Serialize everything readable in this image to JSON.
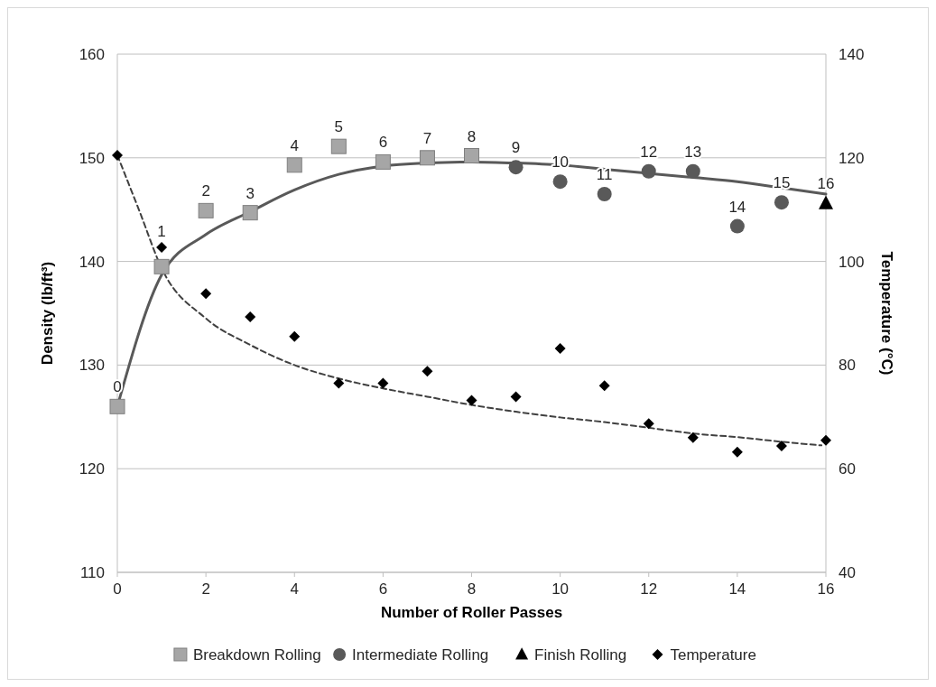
{
  "chart_data": {
    "type": "scatter",
    "xlabel": "Number of Roller Passes",
    "ylabel": "Density (lb/ft³)",
    "y2label": "Temperature (°C)",
    "xlim": [
      0,
      16
    ],
    "xticks": [
      0,
      2,
      4,
      6,
      8,
      10,
      12,
      14,
      16
    ],
    "ylim": [
      110,
      160
    ],
    "yticks": [
      110,
      120,
      130,
      140,
      150,
      160
    ],
    "y2lim": [
      40,
      140
    ],
    "y2ticks": [
      40,
      60,
      80,
      100,
      120,
      140
    ],
    "grid": "y",
    "legend": "bottom",
    "series": [
      {
        "name": "Breakdown Rolling",
        "marker": "square",
        "color": "#a6a6a6",
        "x": [
          0,
          1,
          2,
          3,
          4,
          5,
          6,
          7,
          8
        ],
        "values": [
          126.0,
          139.5,
          144.9,
          144.7,
          149.3,
          151.1,
          149.6,
          150.0,
          150.2
        ]
      },
      {
        "name": "Intermediate Rolling",
        "marker": "circle",
        "color": "#595959",
        "x": [
          9,
          10,
          11,
          12,
          13,
          14,
          15
        ],
        "values": [
          149.1,
          147.7,
          146.5,
          148.7,
          148.7,
          143.4,
          145.7
        ]
      },
      {
        "name": "Finish Rolling",
        "marker": "triangle",
        "color": "#000000",
        "x": [
          16
        ],
        "values": [
          145.6
        ]
      },
      {
        "name": "Temperature",
        "marker": "diamond",
        "color": "#000000",
        "axis": "y2",
        "x": [
          0,
          1,
          2,
          3,
          4,
          5,
          6,
          7,
          8,
          9,
          10,
          11,
          12,
          13,
          14,
          15,
          16
        ],
        "values": [
          120.5,
          102.7,
          93.8,
          89.3,
          85.5,
          76.5,
          76.5,
          78.8,
          73.2,
          73.9,
          83.2,
          76.0,
          68.7,
          66.0,
          63.2,
          64.4,
          65.5
        ]
      },
      {
        "type": "line",
        "marker": "none",
        "line_style": "solid",
        "color": "#595959",
        "x": [
          0,
          1,
          2,
          3,
          4,
          5,
          6,
          7,
          8,
          9,
          10,
          11,
          12,
          13,
          14,
          15,
          16
        ],
        "values": [
          126.0,
          138.7,
          142.6,
          144.8,
          146.9,
          148.4,
          149.2,
          149.5,
          149.6,
          149.5,
          149.3,
          148.9,
          148.5,
          148.1,
          147.7,
          147.1,
          146.5
        ]
      },
      {
        "type": "line",
        "marker": "none",
        "line_style": "dashed",
        "color": "#404040",
        "axis": "y2",
        "x": [
          0,
          0.5,
          1,
          2,
          3,
          4,
          5,
          6,
          7,
          8,
          9,
          10,
          11,
          12,
          13,
          14,
          15,
          15.9
        ],
        "values": [
          120.5,
          109.7,
          98.7,
          89.0,
          83.9,
          80.0,
          77.4,
          75.5,
          73.9,
          72.3,
          71.0,
          69.9,
          69.0,
          67.9,
          66.8,
          66.1,
          65.2,
          64.5
        ]
      }
    ],
    "annotations": [
      {
        "text": "0",
        "x": 0,
        "y": 126.0
      },
      {
        "text": "1",
        "x": 1,
        "y": 139.5
      },
      {
        "text": "2",
        "x": 2,
        "y": 144.9
      },
      {
        "text": "3",
        "x": 3,
        "y": 144.7
      },
      {
        "text": "4",
        "x": 4,
        "y": 149.3
      },
      {
        "text": "5",
        "x": 5,
        "y": 151.1
      },
      {
        "text": "6",
        "x": 6,
        "y": 149.6
      },
      {
        "text": "7",
        "x": 7,
        "y": 150.0
      },
      {
        "text": "8",
        "x": 8,
        "y": 150.2
      },
      {
        "text": "9",
        "x": 9,
        "y": 149.1
      },
      {
        "text": "10",
        "x": 10,
        "y": 147.7
      },
      {
        "text": "11",
        "x": 11,
        "y": 146.5
      },
      {
        "text": "12",
        "x": 12,
        "y": 148.7
      },
      {
        "text": "13",
        "x": 13,
        "y": 148.7
      },
      {
        "text": "14",
        "x": 14,
        "y": 143.4
      },
      {
        "text": "15",
        "x": 15,
        "y": 145.7
      },
      {
        "text": "16",
        "x": 16,
        "y": 145.6
      }
    ]
  }
}
